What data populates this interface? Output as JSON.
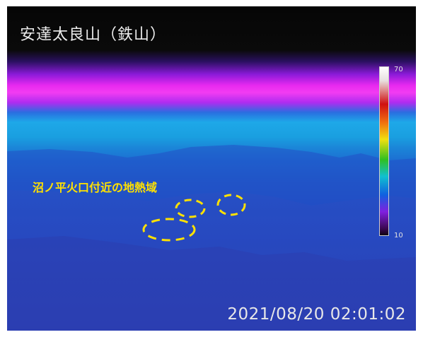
{
  "title": "安達太良山（鉄山）",
  "annotation": "沼ノ平火口付近の地熱域",
  "timestamp": "2021/08/20 02:01:02",
  "scale": {
    "max": "70",
    "min": "10"
  },
  "colors": {
    "annotation": "#ffe100",
    "sky_band": "#f23cf2",
    "terrain": "#2541bb"
  }
}
